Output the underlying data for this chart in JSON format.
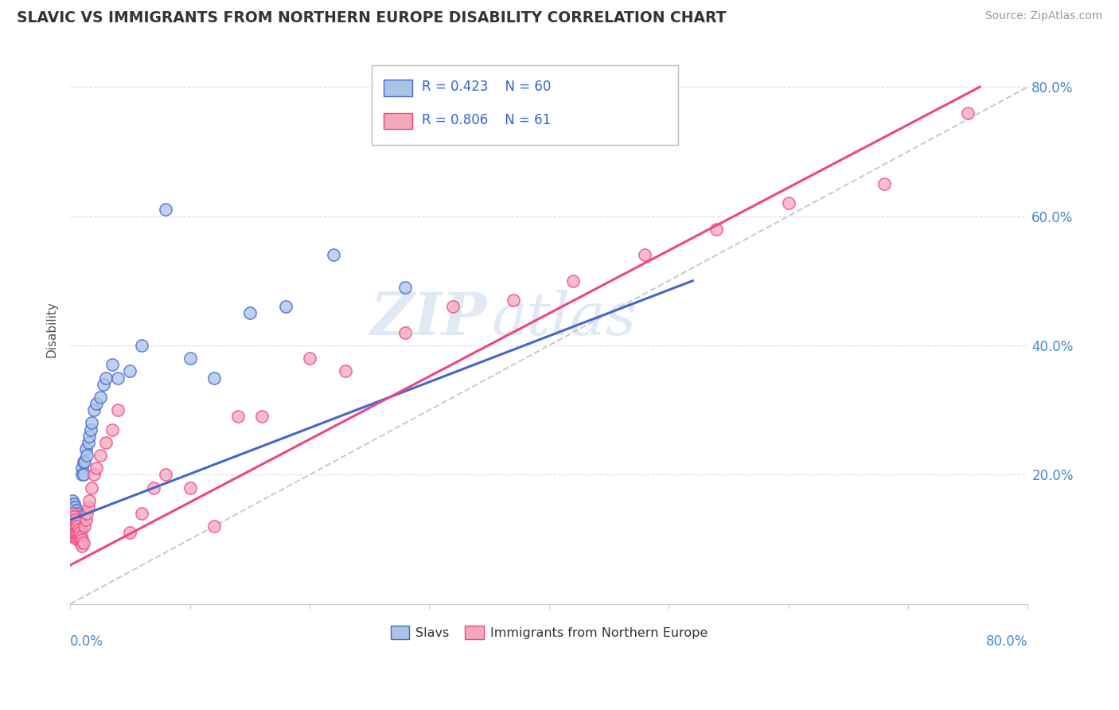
{
  "title": "SLAVIC VS IMMIGRANTS FROM NORTHERN EUROPE DISABILITY CORRELATION CHART",
  "source": "Source: ZipAtlas.com",
  "ylabel": "Disability",
  "legend_label1": "Slavs",
  "legend_label2": "Immigrants from Northern Europe",
  "r1": 0.423,
  "n1": 60,
  "r2": 0.806,
  "n2": 61,
  "color_slavs": "#aac4e8",
  "color_immigrants": "#f4a8bc",
  "color_slavs_line": "#4466cc",
  "color_immigrants_line": "#ee4488",
  "color_diagonal": "#cccccc",
  "watermark_zip": "ZIP",
  "watermark_atlas": "atlas",
  "slavs_x": [
    0.001,
    0.001,
    0.001,
    0.002,
    0.002,
    0.002,
    0.002,
    0.002,
    0.003,
    0.003,
    0.003,
    0.003,
    0.003,
    0.004,
    0.004,
    0.004,
    0.004,
    0.005,
    0.005,
    0.005,
    0.005,
    0.005,
    0.006,
    0.006,
    0.006,
    0.007,
    0.007,
    0.007,
    0.008,
    0.008,
    0.008,
    0.009,
    0.009,
    0.01,
    0.01,
    0.011,
    0.011,
    0.012,
    0.013,
    0.014,
    0.015,
    0.016,
    0.017,
    0.018,
    0.02,
    0.022,
    0.025,
    0.028,
    0.03,
    0.035,
    0.04,
    0.05,
    0.06,
    0.08,
    0.1,
    0.12,
    0.15,
    0.18,
    0.22,
    0.28
  ],
  "slavs_y": [
    0.155,
    0.145,
    0.135,
    0.16,
    0.15,
    0.14,
    0.13,
    0.12,
    0.155,
    0.145,
    0.135,
    0.125,
    0.115,
    0.15,
    0.14,
    0.13,
    0.12,
    0.145,
    0.135,
    0.125,
    0.115,
    0.105,
    0.14,
    0.13,
    0.12,
    0.135,
    0.125,
    0.115,
    0.13,
    0.12,
    0.11,
    0.125,
    0.115,
    0.21,
    0.2,
    0.22,
    0.2,
    0.22,
    0.24,
    0.23,
    0.25,
    0.26,
    0.27,
    0.28,
    0.3,
    0.31,
    0.32,
    0.34,
    0.35,
    0.37,
    0.35,
    0.36,
    0.4,
    0.61,
    0.38,
    0.35,
    0.45,
    0.46,
    0.54,
    0.49
  ],
  "immigrants_x": [
    0.001,
    0.001,
    0.001,
    0.001,
    0.002,
    0.002,
    0.002,
    0.002,
    0.003,
    0.003,
    0.003,
    0.003,
    0.004,
    0.004,
    0.004,
    0.005,
    0.005,
    0.005,
    0.006,
    0.006,
    0.006,
    0.007,
    0.007,
    0.008,
    0.008,
    0.009,
    0.009,
    0.01,
    0.01,
    0.011,
    0.012,
    0.013,
    0.014,
    0.015,
    0.016,
    0.018,
    0.02,
    0.022,
    0.025,
    0.03,
    0.035,
    0.04,
    0.05,
    0.06,
    0.07,
    0.08,
    0.1,
    0.12,
    0.14,
    0.16,
    0.2,
    0.23,
    0.28,
    0.32,
    0.37,
    0.42,
    0.48,
    0.54,
    0.6,
    0.68,
    0.75
  ],
  "immigrants_y": [
    0.135,
    0.125,
    0.115,
    0.105,
    0.14,
    0.13,
    0.12,
    0.11,
    0.135,
    0.125,
    0.115,
    0.105,
    0.13,
    0.12,
    0.11,
    0.125,
    0.115,
    0.105,
    0.12,
    0.11,
    0.1,
    0.115,
    0.105,
    0.11,
    0.1,
    0.105,
    0.095,
    0.1,
    0.09,
    0.095,
    0.12,
    0.13,
    0.14,
    0.15,
    0.16,
    0.18,
    0.2,
    0.21,
    0.23,
    0.25,
    0.27,
    0.3,
    0.11,
    0.14,
    0.18,
    0.2,
    0.18,
    0.12,
    0.29,
    0.29,
    0.38,
    0.36,
    0.42,
    0.46,
    0.47,
    0.5,
    0.54,
    0.58,
    0.62,
    0.65,
    0.76
  ],
  "xlim": [
    0.0,
    0.8
  ],
  "ylim": [
    0.0,
    0.85
  ],
  "yticks": [
    0.0,
    0.2,
    0.4,
    0.6,
    0.8
  ],
  "ytick_labels": [
    "",
    "20.0%",
    "40.0%",
    "60.0%",
    "80.0%"
  ],
  "xtick_positions": [
    0.0,
    0.1,
    0.2,
    0.3,
    0.4,
    0.5,
    0.6,
    0.7,
    0.8
  ],
  "slavs_line_x0": 0.0,
  "slavs_line_y0": 0.13,
  "slavs_line_x1": 0.52,
  "slavs_line_y1": 0.5,
  "immigrants_line_x0": 0.0,
  "immigrants_line_y0": 0.06,
  "immigrants_line_x1": 0.76,
  "immigrants_line_y1": 0.8,
  "background_color": "#ffffff",
  "grid_color": "#dddddd"
}
